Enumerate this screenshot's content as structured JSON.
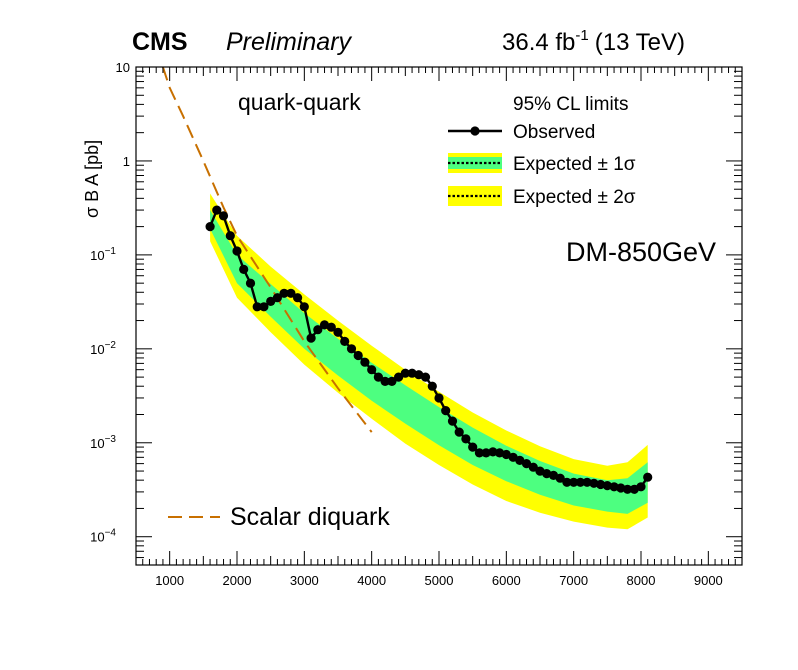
{
  "header": {
    "experiment": "CMS",
    "status": "Preliminary",
    "lumi": "36.4 fb",
    "lumi_exp": "-1",
    "energy": "(13 TeV)"
  },
  "chart_data": {
    "type": "line",
    "channel_label": "quark-quark",
    "legend_title": "95% CL limits",
    "model_label": "DM-850GeV",
    "ylabel": "σ B A [pb]",
    "xlabel": "",
    "x_scale": "linear",
    "y_scale": "log",
    "xlim": [
      500,
      9500
    ],
    "ylim": [
      5e-05,
      10
    ],
    "x_ticks": [
      1000,
      2000,
      3000,
      4000,
      5000,
      6000,
      7000,
      8000,
      9000
    ],
    "y_ticks": [
      {
        "value": 10,
        "base": "10",
        "exp": ""
      },
      {
        "value": 1,
        "base": "1",
        "exp": ""
      },
      {
        "value": 0.1,
        "base": "10",
        "exp": "−1"
      },
      {
        "value": 0.01,
        "base": "10",
        "exp": "−2"
      },
      {
        "value": 0.001,
        "base": "10",
        "exp": "−3"
      },
      {
        "value": 0.0001,
        "base": "10",
        "exp": "−4"
      }
    ],
    "legend": [
      {
        "label": "Observed",
        "style": "black-line-dots"
      },
      {
        "label": "Expected ± 1σ",
        "style": "dotted-green-band"
      },
      {
        "label": "Expected ± 2σ",
        "style": "dotted-yellow-band"
      }
    ],
    "theory_legend": {
      "label": "Scalar diquark",
      "color": "#c87000"
    },
    "colors": {
      "band_2sigma": "#ffff00",
      "band_1sigma": "#4dff80",
      "observed": "#000000",
      "theory": "#c87000"
    },
    "series": [
      {
        "name": "Observed",
        "x": [
          1600,
          1700,
          1800,
          1900,
          2000,
          2100,
          2200,
          2300,
          2400,
          2500,
          2600,
          2700,
          2800,
          2900,
          3000,
          3100,
          3200,
          3300,
          3400,
          3500,
          3600,
          3700,
          3800,
          3900,
          4000,
          4100,
          4200,
          4300,
          4400,
          4500,
          4600,
          4700,
          4800,
          4900,
          5000,
          5100,
          5200,
          5300,
          5400,
          5500,
          5600,
          5700,
          5800,
          5900,
          6000,
          6100,
          6200,
          6300,
          6400,
          6500,
          6600,
          6700,
          6800,
          6900,
          7000,
          7100,
          7200,
          7300,
          7400,
          7500,
          7600,
          7700,
          7800,
          7900,
          8000,
          8100
        ],
        "y": [
          0.2,
          0.3,
          0.26,
          0.16,
          0.11,
          0.07,
          0.05,
          0.028,
          0.028,
          0.032,
          0.035,
          0.039,
          0.039,
          0.035,
          0.028,
          0.013,
          0.016,
          0.018,
          0.017,
          0.015,
          0.012,
          0.01,
          0.0085,
          0.0072,
          0.006,
          0.005,
          0.0045,
          0.0045,
          0.005,
          0.0055,
          0.0055,
          0.0053,
          0.005,
          0.004,
          0.003,
          0.0022,
          0.0017,
          0.0013,
          0.0011,
          0.0009,
          0.00078,
          0.00078,
          0.0008,
          0.00078,
          0.00075,
          0.0007,
          0.00065,
          0.0006,
          0.00055,
          0.0005,
          0.00047,
          0.00045,
          0.00042,
          0.00038,
          0.00038,
          0.00038,
          0.00038,
          0.00037,
          0.00036,
          0.00035,
          0.00034,
          0.00033,
          0.00032,
          0.00032,
          0.00034,
          0.00043
        ]
      },
      {
        "name": "Expected ± 2σ",
        "x": [
          1600,
          2000,
          2500,
          3000,
          3500,
          4000,
          4500,
          5000,
          5500,
          6000,
          6500,
          7000,
          7500,
          7800,
          8100
        ],
        "lower": [
          0.14,
          0.035,
          0.015,
          0.0068,
          0.0034,
          0.0018,
          0.00098,
          0.00058,
          0.00036,
          0.00024,
          0.00018,
          0.000145,
          0.000125,
          0.00012,
          0.00016
        ],
        "upper": [
          0.45,
          0.16,
          0.075,
          0.038,
          0.02,
          0.0108,
          0.006,
          0.0035,
          0.0021,
          0.00135,
          0.00092,
          0.00067,
          0.00057,
          0.00062,
          0.00095
        ]
      },
      {
        "name": "Expected ± 1σ",
        "x": [
          1600,
          2000,
          2500,
          3000,
          3500,
          4000,
          4500,
          5000,
          5500,
          6000,
          6500,
          7000,
          7500,
          7800,
          8100
        ],
        "lower": [
          0.19,
          0.05,
          0.022,
          0.01,
          0.0052,
          0.0028,
          0.0016,
          0.00094,
          0.00058,
          0.00039,
          0.00028,
          0.000215,
          0.000185,
          0.000175,
          0.00023
        ],
        "upper": [
          0.3,
          0.1,
          0.049,
          0.024,
          0.0128,
          0.0071,
          0.0041,
          0.0024,
          0.00145,
          0.00093,
          0.00064,
          0.00047,
          0.0004,
          0.00042,
          0.00062
        ]
      },
      {
        "name": "Scalar diquark",
        "x": [
          900,
          1000,
          1200,
          1500,
          1800,
          2000,
          2500,
          3000,
          3500,
          4000
        ],
        "y": [
          10,
          6,
          3.0,
          1.0,
          0.32,
          0.16,
          0.045,
          0.012,
          0.0038,
          0.0013
        ]
      }
    ]
  }
}
